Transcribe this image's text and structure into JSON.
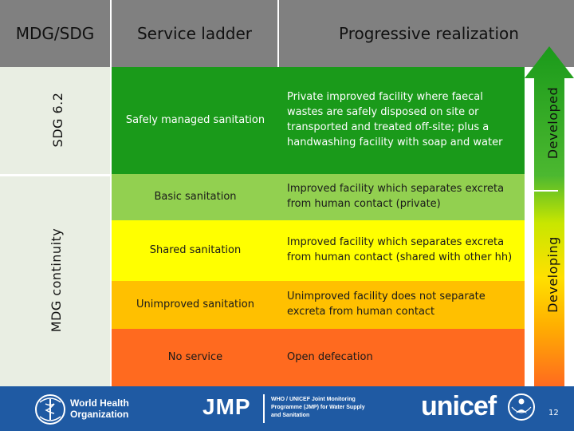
{
  "header": {
    "mdg_sdg": "MDG/SDG",
    "service_ladder": "Service ladder",
    "progressive_realization": "Progressive realization"
  },
  "left_labels": {
    "sdg": "SDG 6.2",
    "mdg": "MDG continuity"
  },
  "right_labels": {
    "developed": "Developed",
    "developing": "Developing"
  },
  "rows": [
    {
      "ladder": "Safely managed sanitation",
      "description": "Private improved facility where faecal wastes are safely disposed on site or transported and treated off-site; plus a handwashing facility with soap and water",
      "color": "#1a9a1a"
    },
    {
      "ladder": "Basic sanitation",
      "description": "Improved facility which separates excreta from human contact (private)",
      "color": "#92d050"
    },
    {
      "ladder": "Shared sanitation",
      "description": "Improved facility which separates excreta from human contact (shared with other hh)",
      "color": "#ffff00"
    },
    {
      "ladder": "Unimproved sanitation",
      "description": "Unimproved facility does not separate excreta from human contact",
      "color": "#ffc000"
    },
    {
      "ladder": "No service",
      "description": "Open defecation",
      "color": "#ff6a1f"
    }
  ],
  "footer": {
    "who_line1": "World Health",
    "who_line2": "Organization",
    "jmp": "JMP",
    "jmp_desc_line1": "WHO / UNICEF Joint Monitoring",
    "jmp_desc_line2": "Programme (JMP) for Water Supply",
    "jmp_desc_line3": "and Sanitation",
    "unicef": "unicef",
    "page_number": "12"
  },
  "colors": {
    "header_gray": "#808080",
    "footer_blue": "#1f5aa3",
    "left_column": "#e9eee3"
  }
}
